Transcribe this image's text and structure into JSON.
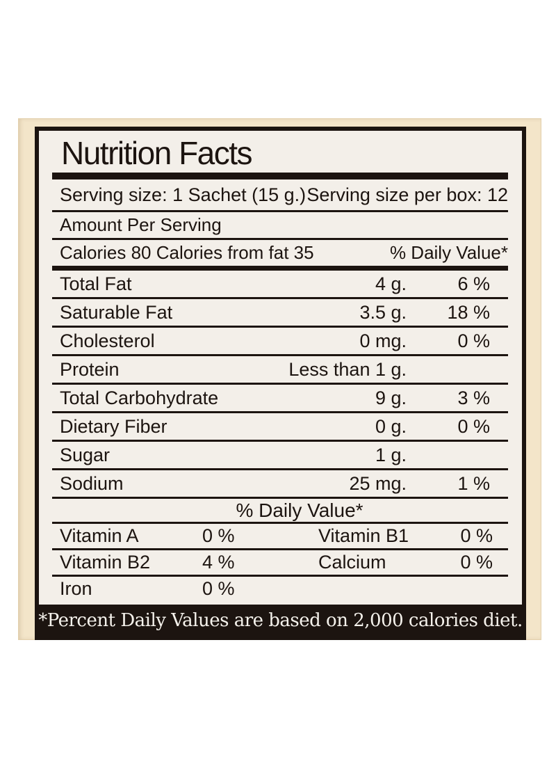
{
  "colors": {
    "page_bg": "#ffffff",
    "card_bg": "#f3e5c9",
    "label_bg": "#f3efe9",
    "ink": "#1c1410",
    "footnote_text": "#f5f2ec"
  },
  "label": {
    "title": "Nutrition Facts",
    "serving": {
      "size": "Serving size: 1 Sachet (15 g.)",
      "per_box": "Serving size per box: 12"
    },
    "amount_per_serving": "Amount Per Serving",
    "calories_line": "Calories 80 Calories from fat 35",
    "daily_value_header": "% Daily Value*",
    "nutrients": [
      {
        "name": "Total Fat",
        "amount": "4 g.",
        "dv": "6 %"
      },
      {
        "name": "Saturable Fat",
        "amount": "3.5 g.",
        "dv": "18 %"
      },
      {
        "name": "Cholesterol",
        "amount": "0 mg.",
        "dv": "0 %"
      },
      {
        "name": "Protein",
        "amount": "Less than 1 g.",
        "dv": ""
      },
      {
        "name": "Total Carbohydrate",
        "amount": "9 g.",
        "dv": "3 %"
      },
      {
        "name": "Dietary Fiber",
        "amount": "0 g.",
        "dv": "0 %"
      },
      {
        "name": "Sugar",
        "amount": "1 g.",
        "dv": ""
      },
      {
        "name": "Sodium",
        "amount": "25 mg.",
        "dv": "1 %"
      }
    ],
    "dv_section_header": "% Daily Value*",
    "micronutrients": [
      {
        "left_name": "Vitamin A",
        "left_value": "0 %",
        "right_name": "Vitamin B1",
        "right_value": "0 %"
      },
      {
        "left_name": "Vitamin B2",
        "left_value": "4 %",
        "right_name": "Calcium",
        "right_value": "0 %"
      },
      {
        "left_name": "Iron",
        "left_value": "0 %",
        "right_name": "",
        "right_value": ""
      }
    ],
    "footnote": "*Percent Daily Values are based on 2,000 calories diet."
  }
}
